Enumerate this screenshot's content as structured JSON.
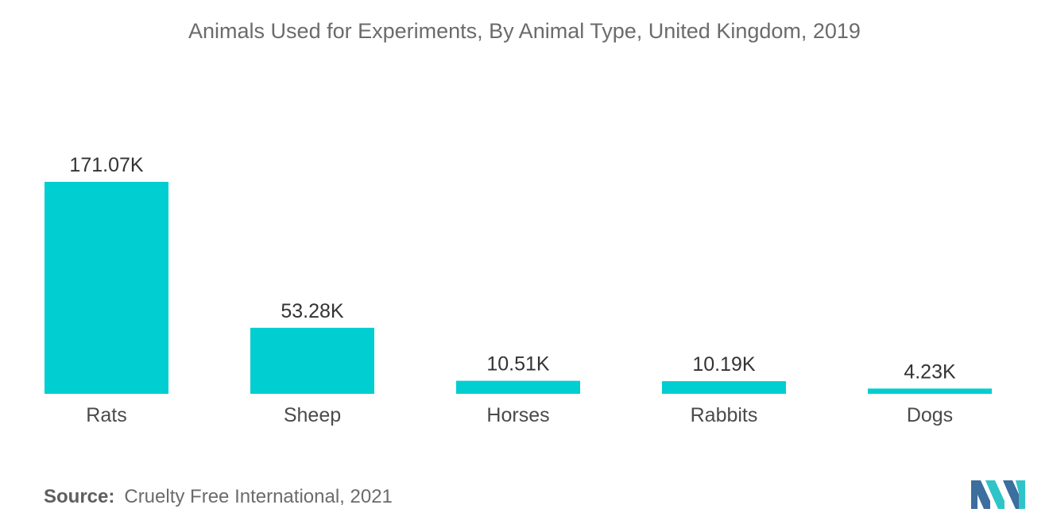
{
  "title": "Animals Used for Experiments, By Animal Type, United Kingdom, 2019",
  "source": {
    "label": "Source:",
    "text": "Cruelty Free International, 2021"
  },
  "colors": {
    "bar": "#00CED1",
    "text": "#6b6b6b",
    "logo_dark": "#3c6e9e",
    "logo_light": "#2fc4c8"
  },
  "chart_data": {
    "type": "bar",
    "title": "Animals Used for Experiments, By Animal Type, United Kingdom, 2019",
    "categories": [
      "Rats",
      "Sheep",
      "Horses",
      "Rabbits",
      "Dogs"
    ],
    "values": [
      171.07,
      53.28,
      10.51,
      10.19,
      4.23
    ],
    "value_labels": [
      "171.07K",
      "53.28K",
      "10.51K",
      "10.19K",
      "4.23K"
    ],
    "unit": "K",
    "xlabel": "",
    "ylabel": "",
    "ylim": [
      0,
      171.07
    ],
    "grid": false,
    "legend": "none"
  }
}
